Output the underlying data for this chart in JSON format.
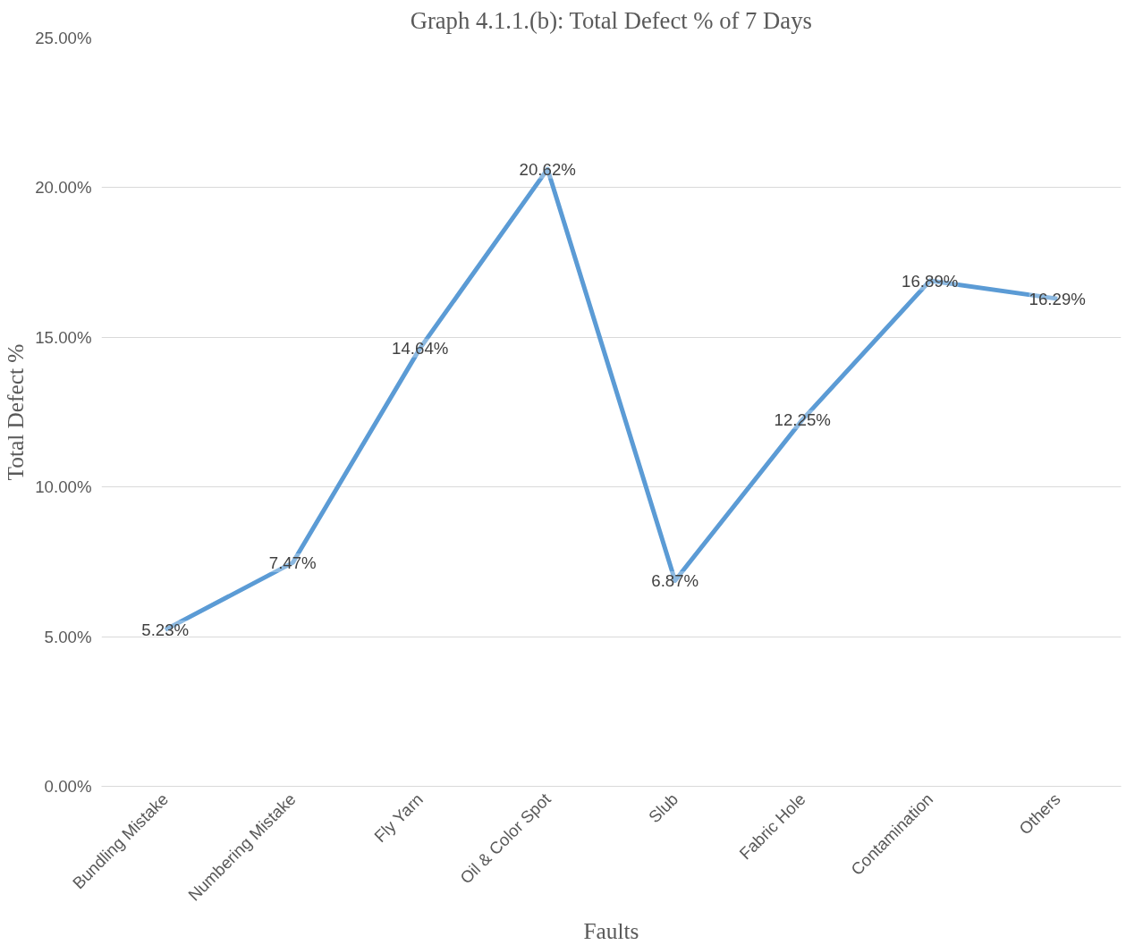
{
  "chart_data": {
    "type": "line",
    "title": "Graph 4.1.1.(b): Total Defect % of 7 Days",
    "xlabel": "Faults",
    "ylabel": "Total Defect %",
    "categories": [
      "Bundling Mistake",
      "Numbering Mistake",
      "Fly Yarn",
      "Oil & Color Spot",
      "Slub",
      "Fabric Hole",
      "Contamination",
      "Others"
    ],
    "series": [
      {
        "color": "#5b9bd5",
        "values": [
          5.23,
          7.47,
          14.64,
          20.62,
          6.87,
          12.25,
          16.89,
          16.29
        ],
        "value_labels": [
          "5.23%",
          "7.47%",
          "14.64%",
          "20.62%",
          "6.87%",
          "12.25%",
          "16.89%",
          "16.29%"
        ]
      }
    ],
    "ylim": [
      0,
      25
    ],
    "yticks": [
      {
        "value": 0,
        "label": "0.00%"
      },
      {
        "value": 5,
        "label": "5.00%"
      },
      {
        "value": 10,
        "label": "10.00%"
      },
      {
        "value": 15,
        "label": "15.00%"
      },
      {
        "value": 20,
        "label": "20.00%"
      },
      {
        "value": 25,
        "label": "25.00%"
      }
    ],
    "grid": "y",
    "marker": "none",
    "line_style": "solid"
  }
}
